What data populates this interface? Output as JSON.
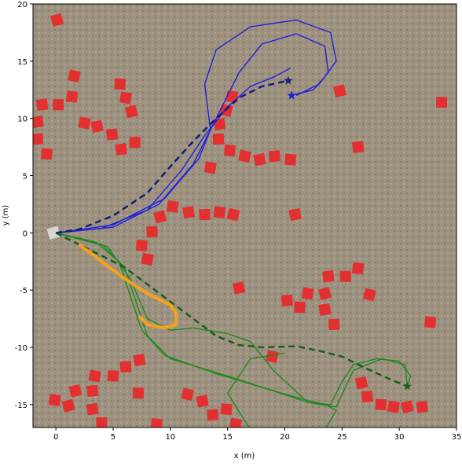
{
  "chart_data": {
    "type": "trajectory",
    "xlabel": "x (m)",
    "ylabel": "y (m)",
    "xlim": [
      -2,
      35
    ],
    "ylim": [
      -17,
      20
    ],
    "xticks": [
      0,
      5,
      10,
      15,
      20,
      25,
      30,
      35
    ],
    "yticks": [
      -15,
      -10,
      -5,
      0,
      5,
      10,
      15,
      20
    ],
    "series": [
      {
        "marker": "square",
        "color": "#e8282a",
        "x": [
          0.1,
          -1.2,
          0.2,
          1.4,
          1.6,
          -1.6,
          -1.6,
          -0.8,
          2.5,
          3.6,
          4.9,
          5.6,
          6.1,
          6.6,
          5.7,
          6.9,
          15.4,
          14.9,
          14.3,
          14.2,
          15.2,
          16.5,
          17.8,
          19.1,
          20.5,
          13.5,
          24.8,
          26.4,
          33.7,
          10.2,
          9.1,
          11.6,
          13.0,
          14.3,
          15.5,
          20.9,
          8.4,
          7.5,
          8.0,
          16.0,
          20.2,
          21.3,
          22.0,
          23.5,
          23.8,
          25.3,
          26.4,
          27.4,
          23.5,
          24.3,
          32.7,
          18.9,
          7.3,
          6.1,
          5.0,
          3.4,
          1.7,
          3.2,
          7.2,
          -0.1,
          1.1,
          3.2,
          4.0,
          8.8,
          11.5,
          12.8,
          13.7,
          14.9,
          15.7,
          26.7,
          27.2,
          28.4,
          29.5,
          30.7,
          32.0
        ],
        "y": [
          18.6,
          11.2,
          11.2,
          11.9,
          13.7,
          9.7,
          8.2,
          6.9,
          9.6,
          9.3,
          8.6,
          13.0,
          11.8,
          10.6,
          7.3,
          7.9,
          11.9,
          10.7,
          9.5,
          8.2,
          7.2,
          6.7,
          6.4,
          6.7,
          6.4,
          5.7,
          12.4,
          7.5,
          11.4,
          2.3,
          1.4,
          1.8,
          1.6,
          1.8,
          1.6,
          1.6,
          0.1,
          -1.1,
          -2.3,
          -4.8,
          -5.9,
          -6.5,
          -5.3,
          -5.3,
          -3.8,
          -3.8,
          -3.1,
          -5.4,
          -6.7,
          -8.0,
          -7.8,
          -10.8,
          -11.1,
          -11.7,
          -12.5,
          -12.5,
          -13.8,
          -13.8,
          -14.0,
          -14.6,
          -15.1,
          -15.4,
          -16.6,
          -16.7,
          -14.1,
          -14.7,
          -15.9,
          -15.4,
          -16.7,
          -13.1,
          -14.3,
          -15.0,
          -15.2,
          -15.2,
          -15.2
        ]
      },
      {
        "marker": "square",
        "color": "#dcdcdc",
        "x": [
          -0.2
        ],
        "y": [
          0
        ]
      },
      {
        "line": "solid",
        "color": "#1f1fdd",
        "x": [
          0,
          5,
          9,
          12,
          14,
          16,
          18,
          21,
          23.5,
          23.8,
          22.5,
          20.5
        ],
        "y": [
          0,
          0.5,
          2.5,
          6,
          10,
          14,
          16.5,
          17.4,
          16.3,
          14,
          12.5,
          12
        ]
      },
      {
        "line": "solid",
        "color": "#1f1fdd",
        "x": [
          0,
          5,
          9.5,
          12.5,
          13.5,
          13,
          14,
          17,
          21,
          24,
          24.5,
          23,
          21
        ],
        "y": [
          0,
          0.7,
          3,
          6.5,
          9,
          13,
          16,
          18,
          18.6,
          17.5,
          15,
          13,
          12
        ]
      },
      {
        "line": "solid",
        "color": "#1f1fdd",
        "x": [
          0,
          4,
          8,
          11,
          13,
          15,
          17,
          19,
          20.5
        ],
        "y": [
          0,
          0.4,
          2,
          5.5,
          8.5,
          11,
          12.8,
          13.6,
          14.4
        ]
      },
      {
        "line": "dashed",
        "color": "#141c78",
        "x": [
          0,
          2,
          5,
          8,
          10,
          12,
          14,
          16,
          18,
          20.3
        ],
        "y": [
          0,
          0.3,
          1.5,
          3.5,
          5.8,
          8,
          10,
          11.8,
          12.8,
          13.3
        ]
      },
      {
        "line": "solid",
        "color": "#1e8a1e",
        "x": [
          0,
          4,
          6,
          7,
          8,
          10,
          15,
          19,
          22,
          24,
          25,
          26,
          28,
          30,
          31,
          30.7
        ],
        "y": [
          0,
          -1,
          -3,
          -6,
          -9,
          -11,
          -12.5,
          -13.8,
          -14.8,
          -15,
          -13,
          -11.5,
          -11,
          -11.2,
          -12.5,
          -13.4
        ]
      },
      {
        "line": "solid",
        "color": "#1e8a1e",
        "x": [
          0,
          3.5,
          5.5,
          6.5,
          7.5,
          9.5,
          14,
          18,
          21.5,
          23.5,
          24.5,
          23.5,
          17,
          15,
          17,
          20
        ],
        "y": [
          0,
          -0.8,
          -2.5,
          -5.5,
          -8.5,
          -10.7,
          -12.3,
          -13.5,
          -14.5,
          -15,
          -15.5,
          -17.2,
          -17.2,
          -14,
          -11,
          -10.5
        ]
      },
      {
        "line": "solid",
        "color": "#1e8a1e",
        "x": [
          0,
          4.5,
          6.5,
          8,
          10,
          12,
          15,
          17,
          19,
          22,
          24.5,
          26,
          28.5,
          30.5,
          30.7
        ],
        "y": [
          0,
          -1.2,
          -4,
          -7.5,
          -8.5,
          -8.3,
          -8.8,
          -9.5,
          -12,
          -14.8,
          -15.2,
          -12,
          -11,
          -11.5,
          -13.4
        ]
      },
      {
        "line": "dashed",
        "color": "#1a5e1a",
        "x": [
          0,
          3,
          6,
          8,
          10,
          12,
          14,
          16,
          18,
          21,
          23,
          25,
          27,
          29,
          30.7
        ],
        "y": [
          0,
          -1.5,
          -3,
          -4.5,
          -6,
          -7.5,
          -9,
          -9.8,
          -10,
          -9.9,
          -10.3,
          -10.8,
          -11.8,
          -12.7,
          -13.4
        ]
      },
      {
        "line": "solid",
        "color": "#f5a21b",
        "x": [
          2,
          4,
          6,
          8,
          10,
          10.5,
          10.5,
          9.5,
          8,
          7.3
        ],
        "y": [
          -1,
          -2.5,
          -4,
          -5.3,
          -6.3,
          -7,
          -8,
          -8.3,
          -8,
          -7.3
        ]
      },
      {
        "marker": "star",
        "color": "#141c78",
        "x": [
          20.3
        ],
        "y": [
          13.3
        ]
      },
      {
        "marker": "star",
        "color": "#1f1fdd",
        "x": [
          20.6
        ],
        "y": [
          12.0
        ]
      },
      {
        "marker": "star",
        "color": "#1a5e1a",
        "x": [
          30.7
        ],
        "y": [
          -13.4
        ]
      }
    ]
  }
}
